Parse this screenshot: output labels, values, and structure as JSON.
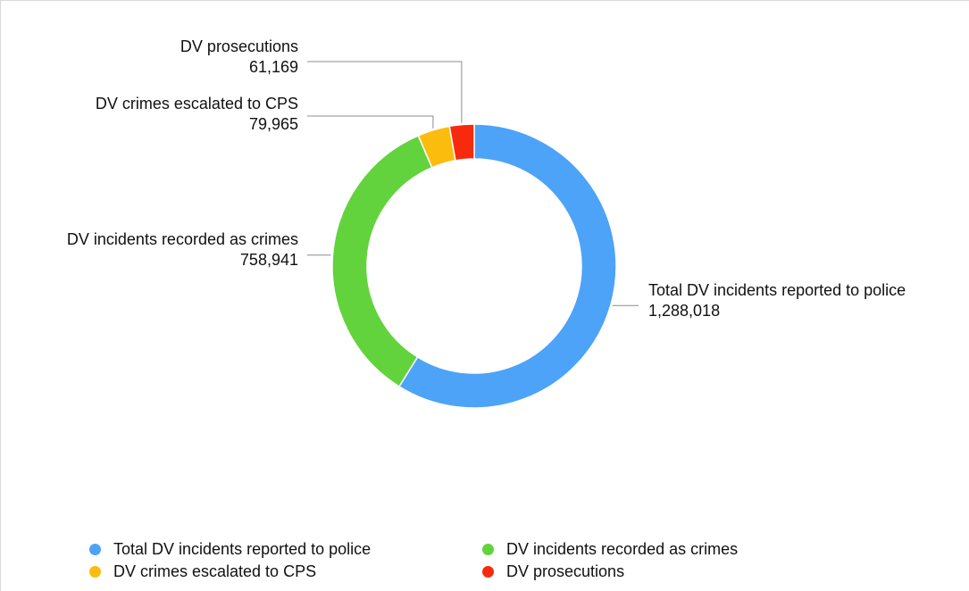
{
  "chart_data": {
    "type": "pie",
    "variant": "donut",
    "title": "",
    "categories": [
      "Total DV incidents reported to police",
      "DV incidents recorded as crimes",
      "DV crimes escalated to CPS",
      "DV prosecutions"
    ],
    "values": [
      1288018,
      758941,
      79965,
      61169
    ],
    "value_labels": [
      "1,288,018",
      "758,941",
      "79,965",
      "61,169"
    ],
    "colors": [
      "#4da3f7",
      "#63d33d",
      "#fbbc0d",
      "#f72a0e"
    ],
    "legend_position": "bottom"
  },
  "legend": {
    "items": [
      {
        "label": "Total DV incidents reported to police",
        "color": "#4da3f7"
      },
      {
        "label": "DV incidents recorded as crimes",
        "color": "#63d33d"
      },
      {
        "label": "DV crimes escalated to CPS",
        "color": "#fbbc0d"
      },
      {
        "label": "DV prosecutions",
        "color": "#f72a0e"
      }
    ]
  }
}
